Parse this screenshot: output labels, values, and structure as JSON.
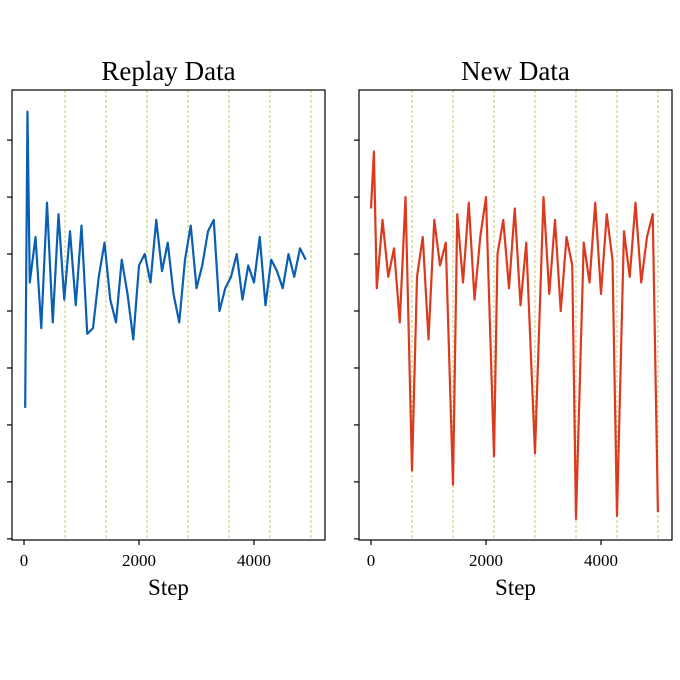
{
  "chart_data": [
    {
      "type": "line",
      "title": "Replay Data",
      "xlabel": "Step",
      "x": [
        20,
        60,
        100,
        200,
        300,
        400,
        500,
        600,
        700,
        800,
        900,
        1000,
        1100,
        1200,
        1300,
        1400,
        1500,
        1600,
        1700,
        1800,
        1900,
        2000,
        2100,
        2200,
        2300,
        2400,
        2500,
        2600,
        2700,
        2800,
        2900,
        3000,
        3100,
        3200,
        3300,
        3400,
        3500,
        3600,
        3700,
        3800,
        3900,
        4000,
        4100,
        4200,
        4300,
        4400,
        4500,
        4600,
        4700,
        4800,
        4900
      ],
      "series": [
        {
          "color": "#0a5fb4",
          "values": [
            2.3,
            7.5,
            4.5,
            5.3,
            3.7,
            5.9,
            3.8,
            5.7,
            4.2,
            5.4,
            4.1,
            5.5,
            3.6,
            3.7,
            4.6,
            5.2,
            4.2,
            3.8,
            4.9,
            4.3,
            3.5,
            4.8,
            5.0,
            4.5,
            5.6,
            4.7,
            5.2,
            4.3,
            3.8,
            4.9,
            5.5,
            4.4,
            4.8,
            5.4,
            5.6,
            4.0,
            4.4,
            4.6,
            5.0,
            4.2,
            4.8,
            4.5,
            5.3,
            4.1,
            4.9,
            4.7,
            4.4,
            5.0,
            4.6,
            5.1,
            4.9
          ]
        }
      ],
      "xlim": [
        -209,
        5235
      ],
      "xticks": [
        0,
        2000,
        4000
      ],
      "ylim": [
        -0.02,
        7.88
      ],
      "yticks": [
        0,
        1,
        2,
        3,
        4,
        5,
        6,
        7
      ],
      "vlines": [
        713,
        1426,
        2139,
        2852,
        3565,
        4278,
        4991
      ],
      "vline_color": "#b8bb45"
    },
    {
      "type": "line",
      "title": "New Data",
      "xlabel": "Step",
      "x": [
        0,
        50,
        100,
        200,
        300,
        400,
        500,
        600,
        713,
        800,
        900,
        1000,
        1100,
        1200,
        1300,
        1426,
        1500,
        1600,
        1700,
        1800,
        1900,
        2000,
        2139,
        2200,
        2300,
        2400,
        2500,
        2600,
        2700,
        2852,
        3000,
        3100,
        3200,
        3300,
        3400,
        3500,
        3565,
        3700,
        3800,
        3900,
        4000,
        4100,
        4200,
        4278,
        4400,
        4500,
        4600,
        4700,
        4800,
        4900,
        4990
      ],
      "series": [
        {
          "color": "#dc3a1e",
          "values": [
            5.8,
            6.8,
            4.4,
            5.6,
            4.6,
            5.1,
            3.8,
            6.0,
            1.2,
            4.6,
            5.3,
            3.5,
            5.6,
            4.8,
            5.2,
            0.95,
            5.7,
            4.5,
            5.9,
            4.2,
            5.3,
            6.0,
            1.45,
            5.0,
            5.6,
            4.4,
            5.8,
            4.1,
            5.2,
            1.5,
            6.0,
            4.3,
            5.6,
            4.0,
            5.3,
            4.8,
            0.35,
            5.2,
            4.5,
            5.9,
            4.3,
            5.7,
            4.9,
            0.4,
            5.4,
            4.6,
            5.9,
            4.5,
            5.3,
            5.7,
            0.47
          ]
        }
      ],
      "xlim": [
        -209,
        5235
      ],
      "xticks": [
        0,
        2000,
        4000
      ],
      "ylim": [
        -0.02,
        7.88
      ],
      "yticks": [
        0,
        1,
        2,
        3,
        4,
        5,
        6,
        7
      ],
      "vlines": [
        713,
        1426,
        2139,
        2852,
        3565,
        4278,
        4991
      ],
      "vline_color": "#b8bb45"
    }
  ]
}
